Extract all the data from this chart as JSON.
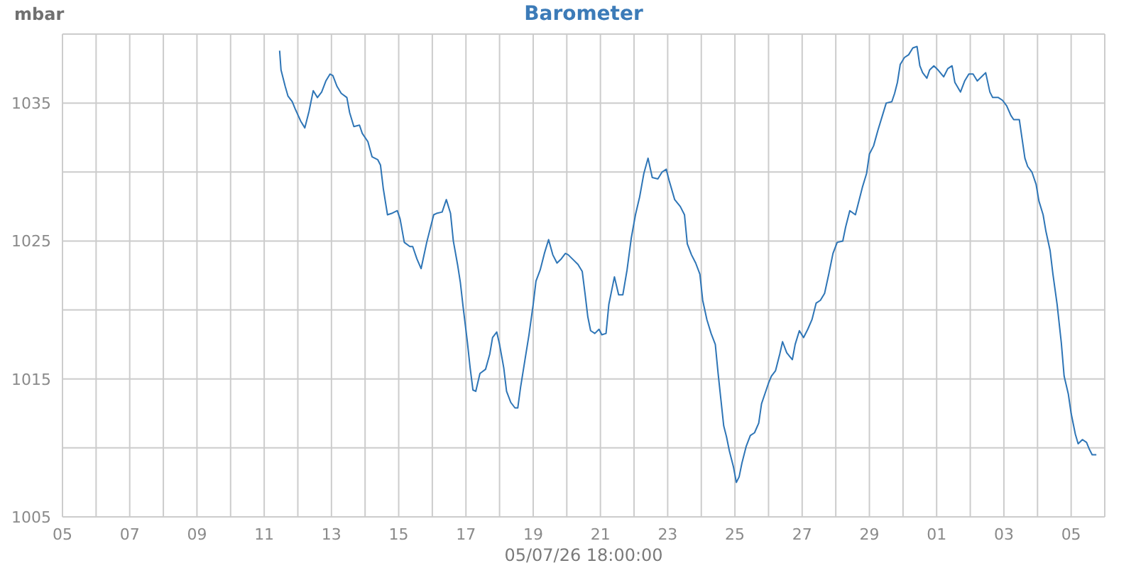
{
  "chart_data": {
    "type": "line",
    "title": "Barometer",
    "ylabel": "mbar",
    "xlabel": "05/07/26 18:00:00",
    "color": "#2e75b6",
    "marker": "none",
    "line_style": "solid",
    "grid": true,
    "xlim": [
      "--06-05",
      "--07-06"
    ],
    "ylim": [
      1005,
      1040
    ],
    "xticks": [
      {
        "value": "--06-05",
        "label": "05"
      },
      {
        "value": "--06-06",
        "label": null
      },
      {
        "value": "--06-07",
        "label": "07"
      },
      {
        "value": "--06-08",
        "label": null
      },
      {
        "value": "--06-09",
        "label": "09"
      },
      {
        "value": "--06-10",
        "label": null
      },
      {
        "value": "--06-11",
        "label": "11"
      },
      {
        "value": "--06-12",
        "label": null
      },
      {
        "value": "--06-13",
        "label": "13"
      },
      {
        "value": "--06-14",
        "label": null
      },
      {
        "value": "--06-15",
        "label": "15"
      },
      {
        "value": "--06-16",
        "label": null
      },
      {
        "value": "--06-17",
        "label": "17"
      },
      {
        "value": "--06-18",
        "label": null
      },
      {
        "value": "--06-19",
        "label": "19"
      },
      {
        "value": "--06-20",
        "label": null
      },
      {
        "value": "--06-21",
        "label": "21"
      },
      {
        "value": "--06-22",
        "label": null
      },
      {
        "value": "--06-23",
        "label": "23"
      },
      {
        "value": "--06-24",
        "label": null
      },
      {
        "value": "--06-25",
        "label": "25"
      },
      {
        "value": "--06-26",
        "label": null
      },
      {
        "value": "--06-27",
        "label": "27"
      },
      {
        "value": "--06-28",
        "label": null
      },
      {
        "value": "--06-29",
        "label": "29"
      },
      {
        "value": "--06-30",
        "label": null
      },
      {
        "value": "--07-01",
        "label": "01"
      },
      {
        "value": "--07-02",
        "label": null
      },
      {
        "value": "--07-03",
        "label": "03"
      },
      {
        "value": "--07-04",
        "label": null
      },
      {
        "value": "--07-05",
        "label": "05"
      },
      {
        "value": "--07-06",
        "label": null
      }
    ],
    "yticks": [
      1005,
      {
        "value": 1010,
        "label": null
      },
      1015,
      {
        "value": 1020,
        "label": null
      },
      1025,
      {
        "value": 1030,
        "label": null
      },
      1035,
      {
        "value": 1040,
        "label": null
      }
    ],
    "x": [
      "--06-11T11:00",
      "--06-11T12:00",
      "--06-11T15:00",
      "--06-11T17:00",
      "--06-11T20:00",
      "--06-11T22:00",
      "--06-12T02:00",
      "--06-12T05:00",
      "--06-12T08:00",
      "--06-12T11:00",
      "--06-12T14:00",
      "--06-12T17:00",
      "--06-12T20:00",
      "--06-12T23:00",
      "--06-13T01:00",
      "--06-13T04:00",
      "--06-13T07:00",
      "--06-13T11:00",
      "--06-13T13:00",
      "--06-13T16:00",
      "--06-13T20:00",
      "--06-13T22:00",
      "--06-14T02:00",
      "--06-14T05:00",
      "--06-14T09:00",
      "--06-14T11:00",
      "--06-14T13:00",
      "--06-14T16:00",
      "--06-14T19:00",
      "--06-14T23:00",
      "--06-15T01:00",
      "--06-15T04:00",
      "--06-15T08:00",
      "--06-15T10:00",
      "--06-15T13:00",
      "--06-15T16:00",
      "--06-15T20:00",
      "--06-16T01:00",
      "--06-16T03:00",
      "--06-16T07:00",
      "--06-16T10:00",
      "--06-16T13:00",
      "--06-16T15:00",
      "--06-16T18:00",
      "--06-16T20:00",
      "--06-16T22:00",
      "--06-17T01:00",
      "--06-17T03:00",
      "--06-17T05:00",
      "--06-17T07:00",
      "--06-17T10:00",
      "--06-17T14:00",
      "--06-17T17:00",
      "--06-17T19:00",
      "--06-17T22:00",
      "--06-18T00:00",
      "--06-18T03:00",
      "--06-18T05:00",
      "--06-18T08:00",
      "--06-18T11:00",
      "--06-18T13:00",
      "--06-18T15:00",
      "--06-18T18:00",
      "--06-18T21:00",
      "--06-19T00:00",
      "--06-19T02:00",
      "--06-19T05:00",
      "--06-19T08:00",
      "--06-19T11:00",
      "--06-19T14:00",
      "--06-19T17:00",
      "--06-19T20:00",
      "--06-19T23:00",
      "--06-20T01:00",
      "--06-20T05:00",
      "--06-20T08:00",
      "--06-20T11:00",
      "--06-20T13:00",
      "--06-20T15:00",
      "--06-20T17:00",
      "--06-20T20:00",
      "--06-20T23:00",
      "--06-21T01:00",
      "--06-21T04:00",
      "--06-21T06:00",
      "--06-21T09:00",
      "--06-21T10:00",
      "--06-21T13:00",
      "--06-21T16:00",
      "--06-21T19:00",
      "--06-21T22:00",
      "--06-22T01:00",
      "--06-22T04:00",
      "--06-22T07:00",
      "--06-22T10:00",
      "--06-22T13:00",
      "--06-22T17:00",
      "--06-22T20:00",
      "--06-22T23:00",
      "--06-23T01:00",
      "--06-23T05:00",
      "--06-23T09:00",
      "--06-23T12:00",
      "--06-23T14:00",
      "--06-23T17:00",
      "--06-23T20:00",
      "--06-23T23:00",
      "--06-24T01:00",
      "--06-24T04:00",
      "--06-24T07:00",
      "--06-24T10:00",
      "--06-24T12:00",
      "--06-24T14:00",
      "--06-24T16:00",
      "--06-24T18:00",
      "--06-24T20:00",
      "--06-24T23:00",
      "--06-25T01:00",
      "--06-25T03:00",
      "--06-25T05:00",
      "--06-25T08:00",
      "--06-25T11:00",
      "--06-25T14:00",
      "--06-25T17:00",
      "--06-25T19:00",
      "--06-25T22:00",
      "--06-26T00:00",
      "--06-26T02:00",
      "--06-26T05:00",
      "--06-26T08:00",
      "--06-26T10:00",
      "--06-26T13:00",
      "--06-26T17:00",
      "--06-26T19:00",
      "--06-26T22:00",
      "--06-27T01:00",
      "--06-27T04:00",
      "--06-27T07:00",
      "--06-27T10:00",
      "--06-27T13:00",
      "--06-27T16:00",
      "--06-27T19:00",
      "--06-27T22:00",
      "--06-28T01:00",
      "--06-28T05:00",
      "--06-28T07:00",
      "--06-28T10:00",
      "--06-28T14:00",
      "--06-28T16:00",
      "--06-28T19:00",
      "--06-28T22:00",
      "--06-29T00:00",
      "--06-29T03:00",
      "--06-29T06:00",
      "--06-29T12:00",
      "--06-29T16:00",
      "--06-29T18:00",
      "--06-29T20:00",
      "--06-29T22:00",
      "--06-30T01:00",
      "--06-30T04:00",
      "--06-30T07:00",
      "--06-30T10:00",
      "--06-30T12:00",
      "--06-30T14:00",
      "--06-30T17:00",
      "--06-30T19:00",
      "--06-30T22:00",
      "--07-01T01:00",
      "--07-01T05:00",
      "--07-01T08:00",
      "--07-01T11:00",
      "--07-01T13:00",
      "--07-01T17:00",
      "--07-01T20:00",
      "--07-01T23:00",
      "--07-02T02:00",
      "--07-02T05:00",
      "--07-02T09:00",
      "--07-02T11:00",
      "--07-02T14:00",
      "--07-02T16:00",
      "--07-02T20:00",
      "--07-02T23:00",
      "--07-03T02:00",
      "--07-03T05:00",
      "--07-03T07:00",
      "--07-03T11:00",
      "--07-03T13:00",
      "--07-03T15:00",
      "--07-03T17:00",
      "--07-03T20:00",
      "--07-03T23:00",
      "--07-04T01:00",
      "--07-04T04:00",
      "--07-04T06:00",
      "--07-04T09:00",
      "--07-04T11:00",
      "--07-04T14:00",
      "--07-04T17:00",
      "--07-04T19:00",
      "--07-04T22:00",
      "--07-05T00:00",
      "--07-05T03:00",
      "--07-05T05:00",
      "--07-05T08:00",
      "--07-05T11:00",
      "--07-05T13:00",
      "--07-05T15:00",
      "--07-05T18:00"
    ],
    "values": [
      1038.8,
      1037.4,
      1036.2,
      1035.5,
      1035.1,
      1034.6,
      1033.7,
      1033.2,
      1034.4,
      1035.9,
      1035.4,
      1035.8,
      1036.6,
      1037.1,
      1037.0,
      1036.2,
      1035.7,
      1035.4,
      1034.3,
      1033.3,
      1033.4,
      1032.8,
      1032.2,
      1031.1,
      1030.9,
      1030.5,
      1028.8,
      1026.9,
      1027.0,
      1027.2,
      1026.6,
      1024.9,
      1024.6,
      1024.6,
      1023.7,
      1023.0,
      1024.9,
      1026.9,
      1027.0,
      1027.1,
      1028.0,
      1027.0,
      1025.0,
      1023.3,
      1022.0,
      1020.2,
      1017.7,
      1015.8,
      1014.2,
      1014.1,
      1015.4,
      1015.7,
      1016.8,
      1018.0,
      1018.4,
      1017.5,
      1015.8,
      1014.1,
      1013.3,
      1012.9,
      1012.9,
      1014.4,
      1016.3,
      1018.2,
      1020.4,
      1022.1,
      1022.9,
      1024.1,
      1025.1,
      1024.0,
      1023.4,
      1023.7,
      1024.1,
      1024.0,
      1023.6,
      1023.3,
      1022.8,
      1021.2,
      1019.5,
      1018.5,
      1018.3,
      1018.6,
      1018.2,
      1018.3,
      1020.4,
      1021.9,
      1022.4,
      1021.1,
      1021.1,
      1022.9,
      1025.2,
      1026.9,
      1028.2,
      1029.9,
      1031.0,
      1029.6,
      1029.5,
      1030.0,
      1030.2,
      1029.4,
      1028.0,
      1027.5,
      1026.9,
      1024.8,
      1024.0,
      1023.4,
      1022.6,
      1020.7,
      1019.3,
      1018.3,
      1017.5,
      1015.4,
      1013.5,
      1011.6,
      1010.8,
      1009.8,
      1008.6,
      1007.5,
      1007.9,
      1008.9,
      1010.1,
      1010.9,
      1011.1,
      1011.8,
      1013.2,
      1014.1,
      1014.7,
      1015.2,
      1015.6,
      1016.8,
      1017.7,
      1016.9,
      1016.4,
      1017.5,
      1018.5,
      1018.0,
      1018.6,
      1019.3,
      1020.5,
      1020.7,
      1021.2,
      1022.6,
      1024.1,
      1024.9,
      1025.0,
      1026.0,
      1027.2,
      1026.9,
      1027.7,
      1028.9,
      1029.9,
      1031.3,
      1031.9,
      1033.0,
      1035.0,
      1035.1,
      1035.7,
      1036.5,
      1037.8,
      1038.3,
      1038.5,
      1039.0,
      1039.1,
      1037.7,
      1037.2,
      1036.8,
      1037.4,
      1037.7,
      1037.4,
      1036.9,
      1037.5,
      1037.7,
      1036.5,
      1035.8,
      1036.6,
      1037.1,
      1037.1,
      1036.6,
      1037.0,
      1037.2,
      1035.8,
      1035.4,
      1035.4,
      1035.2,
      1034.8,
      1034.1,
      1033.8,
      1033.8,
      1032.4,
      1031.0,
      1030.4,
      1030.0,
      1029.1,
      1027.9,
      1026.9,
      1025.7,
      1024.3,
      1022.6,
      1020.4,
      1017.6,
      1015.2,
      1013.9,
      1012.5,
      1011.0,
      1010.3,
      1010.6,
      1010.4,
      1009.9,
      1009.5,
      1009.5
    ]
  }
}
